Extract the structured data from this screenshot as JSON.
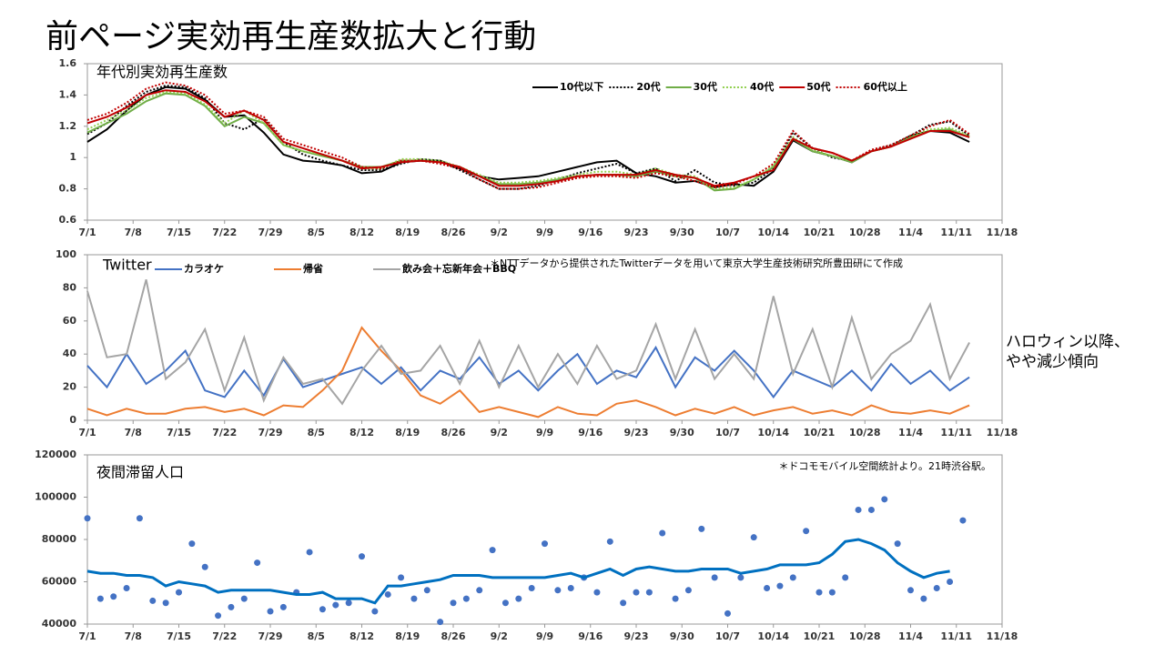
{
  "slide": {
    "title": "前ページ実効再生産数拡大と行動"
  },
  "chart_data": [
    {
      "type": "line",
      "label": "年代別実効再生産数",
      "x": [
        0,
        3,
        6,
        9,
        12,
        15,
        18,
        21,
        24,
        27,
        30,
        33,
        36,
        39,
        42,
        45,
        48,
        51,
        54,
        57,
        60,
        63,
        66,
        69,
        72,
        75,
        78,
        81,
        84,
        87,
        90,
        93,
        96,
        99,
        102,
        105,
        108,
        111,
        114,
        117,
        120,
        123,
        126,
        129,
        132,
        135
      ],
      "xlim": [
        0,
        140
      ],
      "xticks": [
        {
          "value": 0,
          "label": "7/1"
        },
        {
          "value": 7,
          "label": "7/8"
        },
        {
          "value": 14,
          "label": "7/15"
        },
        {
          "value": 21,
          "label": "7/22"
        },
        {
          "value": 28,
          "label": "7/29"
        },
        {
          "value": 35,
          "label": "8/5"
        },
        {
          "value": 42,
          "label": "8/12"
        },
        {
          "value": 49,
          "label": "8/19"
        },
        {
          "value": 56,
          "label": "8/26"
        },
        {
          "value": 63,
          "label": "9/2"
        },
        {
          "value": 70,
          "label": "9/9"
        },
        {
          "value": 77,
          "label": "9/16"
        },
        {
          "value": 84,
          "label": "9/23"
        },
        {
          "value": 91,
          "label": "9/30"
        },
        {
          "value": 98,
          "label": "10/7"
        },
        {
          "value": 105,
          "label": "10/14"
        },
        {
          "value": 112,
          "label": "10/21"
        },
        {
          "value": 119,
          "label": "10/28"
        },
        {
          "value": 126,
          "label": "11/4"
        },
        {
          "value": 133,
          "label": "11/11"
        },
        {
          "value": 140,
          "label": "11/18"
        }
      ],
      "ylim": [
        0.6,
        1.6
      ],
      "yticks": [
        0.6,
        0.8,
        1,
        1.2,
        1.4,
        1.6
      ],
      "legend": "top-right",
      "series": [
        {
          "name": "10代以下",
          "color": "#000000",
          "dash": "solid",
          "values": [
            1.1,
            1.18,
            1.3,
            1.4,
            1.45,
            1.44,
            1.37,
            1.26,
            1.27,
            1.16,
            1.02,
            0.98,
            0.97,
            0.95,
            0.9,
            0.91,
            0.97,
            0.98,
            0.98,
            0.93,
            0.88,
            0.86,
            0.87,
            0.88,
            0.91,
            0.94,
            0.97,
            0.98,
            0.9,
            0.88,
            0.84,
            0.85,
            0.81,
            0.83,
            0.82,
            0.91,
            1.11,
            1.04,
            1.01,
            0.97,
            1.04,
            1.07,
            1.14,
            1.17,
            1.16,
            1.1
          ]
        },
        {
          "name": "20代",
          "color": "#000000",
          "dash": "dotted",
          "values": [
            1.15,
            1.22,
            1.33,
            1.42,
            1.46,
            1.45,
            1.38,
            1.22,
            1.18,
            1.25,
            1.1,
            1.02,
            0.98,
            0.95,
            0.92,
            0.92,
            0.96,
            0.99,
            0.98,
            0.92,
            0.86,
            0.8,
            0.8,
            0.82,
            0.86,
            0.9,
            0.93,
            0.96,
            0.9,
            0.93,
            0.85,
            0.92,
            0.84,
            0.82,
            0.84,
            0.93,
            1.16,
            1.06,
            1.0,
            0.98,
            1.04,
            1.08,
            1.14,
            1.21,
            1.23,
            1.14
          ]
        },
        {
          "name": "30代",
          "color": "#70ad47",
          "dash": "solid",
          "values": [
            1.16,
            1.22,
            1.28,
            1.36,
            1.41,
            1.4,
            1.33,
            1.2,
            1.26,
            1.22,
            1.08,
            1.04,
            1.01,
            0.98,
            0.94,
            0.94,
            0.98,
            0.98,
            0.97,
            0.94,
            0.88,
            0.83,
            0.83,
            0.84,
            0.86,
            0.88,
            0.89,
            0.89,
            0.88,
            0.91,
            0.88,
            0.87,
            0.79,
            0.8,
            0.86,
            0.94,
            1.12,
            1.04,
            1.01,
            0.97,
            1.04,
            1.07,
            1.13,
            1.17,
            1.18,
            1.13
          ]
        },
        {
          "name": "40代",
          "color": "#92d050",
          "dash": "dotted",
          "values": [
            1.18,
            1.24,
            1.3,
            1.38,
            1.42,
            1.41,
            1.34,
            1.22,
            1.3,
            1.22,
            1.08,
            1.04,
            1.02,
            0.98,
            0.93,
            0.93,
            0.99,
            0.99,
            0.98,
            0.94,
            0.89,
            0.84,
            0.84,
            0.85,
            0.87,
            0.89,
            0.91,
            0.91,
            0.89,
            0.93,
            0.89,
            0.88,
            0.8,
            0.81,
            0.86,
            0.95,
            1.13,
            1.05,
            1.01,
            0.98,
            1.04,
            1.07,
            1.14,
            1.18,
            1.19,
            1.14
          ]
        },
        {
          "name": "50代",
          "color": "#c00000",
          "dash": "solid",
          "values": [
            1.22,
            1.26,
            1.32,
            1.4,
            1.43,
            1.42,
            1.36,
            1.26,
            1.3,
            1.24,
            1.1,
            1.06,
            1.02,
            0.98,
            0.93,
            0.94,
            0.97,
            0.98,
            0.97,
            0.94,
            0.88,
            0.82,
            0.82,
            0.83,
            0.85,
            0.88,
            0.89,
            0.89,
            0.89,
            0.92,
            0.89,
            0.87,
            0.82,
            0.84,
            0.88,
            0.92,
            1.12,
            1.06,
            1.03,
            0.98,
            1.04,
            1.07,
            1.12,
            1.17,
            1.17,
            1.13
          ]
        },
        {
          "name": "60代以上",
          "color": "#c00000",
          "dash": "dotted",
          "values": [
            1.24,
            1.28,
            1.35,
            1.44,
            1.48,
            1.46,
            1.4,
            1.28,
            1.3,
            1.26,
            1.12,
            1.08,
            1.04,
            1.0,
            0.94,
            0.93,
            0.98,
            0.98,
            0.96,
            0.93,
            0.86,
            0.8,
            0.8,
            0.81,
            0.84,
            0.87,
            0.88,
            0.88,
            0.87,
            0.9,
            0.88,
            0.85,
            0.81,
            0.83,
            0.88,
            0.96,
            1.17,
            1.06,
            1.03,
            0.98,
            1.05,
            1.08,
            1.14,
            1.2,
            1.24,
            1.15
          ]
        }
      ]
    },
    {
      "type": "line",
      "label": "Twitter",
      "note": "＊NTTデータから提供されたTwitterデータを用いて東京大学生産技術研究所豊田研にて作成",
      "annotation_lines": [
        "ハロウィン以降、",
        "やや減少傾向"
      ],
      "x": [
        0,
        3,
        6,
        9,
        12,
        15,
        18,
        21,
        24,
        27,
        30,
        33,
        36,
        39,
        42,
        45,
        48,
        51,
        54,
        57,
        60,
        63,
        66,
        69,
        72,
        75,
        78,
        81,
        84,
        87,
        90,
        93,
        96,
        99,
        102,
        105,
        108,
        111,
        114,
        117,
        120,
        123,
        126,
        129,
        132,
        135
      ],
      "xlim": [
        0,
        140
      ],
      "xticks": [
        {
          "value": 0,
          "label": "7/1"
        },
        {
          "value": 7,
          "label": "7/8"
        },
        {
          "value": 14,
          "label": "7/15"
        },
        {
          "value": 21,
          "label": "7/22"
        },
        {
          "value": 28,
          "label": "7/29"
        },
        {
          "value": 35,
          "label": "8/5"
        },
        {
          "value": 42,
          "label": "8/12"
        },
        {
          "value": 49,
          "label": "8/19"
        },
        {
          "value": 56,
          "label": "8/26"
        },
        {
          "value": 63,
          "label": "9/2"
        },
        {
          "value": 70,
          "label": "9/9"
        },
        {
          "value": 77,
          "label": "9/16"
        },
        {
          "value": 84,
          "label": "9/23"
        },
        {
          "value": 91,
          "label": "9/30"
        },
        {
          "value": 98,
          "label": "10/7"
        },
        {
          "value": 105,
          "label": "10/14"
        },
        {
          "value": 112,
          "label": "10/21"
        },
        {
          "value": 119,
          "label": "10/28"
        },
        {
          "value": 126,
          "label": "11/4"
        },
        {
          "value": 133,
          "label": "11/11"
        },
        {
          "value": 140,
          "label": "11/18"
        }
      ],
      "ylim": [
        0,
        100
      ],
      "yticks": [
        0,
        20,
        40,
        60,
        80,
        100
      ],
      "legend": "top-left",
      "series": [
        {
          "name": "カラオケ",
          "color": "#4472c4",
          "dash": "solid",
          "values": [
            33,
            20,
            40,
            22,
            30,
            42,
            18,
            14,
            30,
            15,
            37,
            20,
            24,
            28,
            32,
            22,
            32,
            18,
            30,
            25,
            38,
            22,
            30,
            18,
            30,
            40,
            22,
            30,
            26,
            44,
            20,
            38,
            30,
            42,
            30,
            14,
            30,
            25,
            20,
            30,
            18,
            34,
            22,
            30,
            18,
            26
          ]
        },
        {
          "name": "帰省",
          "color": "#ed7d31",
          "dash": "solid",
          "values": [
            7,
            3,
            7,
            4,
            4,
            7,
            8,
            5,
            7,
            3,
            9,
            8,
            18,
            30,
            56,
            42,
            30,
            15,
            10,
            18,
            5,
            8,
            5,
            2,
            8,
            4,
            3,
            10,
            12,
            8,
            3,
            7,
            4,
            8,
            3,
            6,
            8,
            4,
            6,
            3,
            9,
            5,
            4,
            6,
            4,
            9
          ]
        },
        {
          "name": "飲み会＋忘新年会＋BBQ",
          "color": "#a5a5a5",
          "dash": "solid",
          "values": [
            78,
            38,
            40,
            85,
            25,
            35,
            55,
            18,
            50,
            12,
            38,
            22,
            25,
            10,
            30,
            45,
            28,
            30,
            45,
            22,
            48,
            20,
            45,
            20,
            40,
            22,
            45,
            25,
            30,
            58,
            25,
            55,
            25,
            40,
            25,
            75,
            28,
            55,
            20,
            62,
            25,
            40,
            48,
            70,
            25,
            47
          ]
        }
      ]
    },
    {
      "type": "scatter",
      "label": "夜間滞留人口",
      "note": "＊ドコモモバイル空間統計より。21時渋谷駅。",
      "x": [
        0,
        2,
        4,
        6,
        8,
        10,
        12,
        14,
        16,
        18,
        20,
        22,
        24,
        26,
        28,
        30,
        32,
        34,
        36,
        38,
        40,
        42,
        44,
        46,
        48,
        50,
        52,
        54,
        56,
        58,
        60,
        62,
        64,
        66,
        68,
        70,
        72,
        74,
        76,
        78,
        80,
        82,
        84,
        86,
        88,
        90,
        92,
        94,
        96,
        98,
        100,
        102,
        104,
        106,
        108,
        110,
        112,
        114,
        116,
        118,
        120,
        122,
        124,
        126,
        128,
        130,
        132,
        134
      ],
      "xlim": [
        0,
        140
      ],
      "xticks": [
        {
          "value": 0,
          "label": "7/1"
        },
        {
          "value": 7,
          "label": "7/8"
        },
        {
          "value": 14,
          "label": "7/15"
        },
        {
          "value": 21,
          "label": "7/22"
        },
        {
          "value": 28,
          "label": "7/29"
        },
        {
          "value": 35,
          "label": "8/5"
        },
        {
          "value": 42,
          "label": "8/12"
        },
        {
          "value": 49,
          "label": "8/19"
        },
        {
          "value": 56,
          "label": "8/26"
        },
        {
          "value": 63,
          "label": "9/2"
        },
        {
          "value": 70,
          "label": "9/9"
        },
        {
          "value": 77,
          "label": "9/16"
        },
        {
          "value": 84,
          "label": "9/23"
        },
        {
          "value": 91,
          "label": "9/30"
        },
        {
          "value": 98,
          "label": "10/7"
        },
        {
          "value": 105,
          "label": "10/14"
        },
        {
          "value": 112,
          "label": "10/21"
        },
        {
          "value": 119,
          "label": "10/28"
        },
        {
          "value": 126,
          "label": "11/4"
        },
        {
          "value": 133,
          "label": "11/11"
        },
        {
          "value": 140,
          "label": "11/18"
        }
      ],
      "ylim": [
        40000,
        120000
      ],
      "yticks": [
        40000,
        60000,
        80000,
        100000,
        120000
      ],
      "series": [
        {
          "type": "scatter",
          "color": "#4472c4",
          "values": [
            90000,
            52000,
            53000,
            57000,
            90000,
            51000,
            50000,
            55000,
            78000,
            67000,
            44000,
            48000,
            52000,
            69000,
            46000,
            48000,
            55000,
            74000,
            47000,
            49000,
            50000,
            72000,
            46000,
            54000,
            62000,
            52000,
            56000,
            41000,
            50000,
            52000,
            56000,
            75000,
            50000,
            52000,
            57000,
            78000,
            56000,
            57000,
            62000,
            55000,
            79000,
            50000,
            55000,
            55000,
            83000,
            52000,
            56000,
            85000,
            62000,
            45000,
            62000,
            81000,
            57000,
            58000,
            62000,
            84000,
            55000,
            55000,
            62000,
            94000,
            94000,
            99000,
            78000,
            56000,
            52000,
            57000,
            60000,
            89000
          ]
        },
        {
          "type": "line",
          "color": "#0070c0",
          "values": [
            65000,
            64000,
            64000,
            63000,
            63000,
            62000,
            58000,
            60000,
            59000,
            58000,
            55000,
            56000,
            56000,
            56000,
            56000,
            55000,
            54000,
            54000,
            55000,
            52000,
            52000,
            52000,
            50000,
            58000,
            58000,
            59000,
            60000,
            61000,
            63000,
            63000,
            63000,
            62000,
            62000,
            62000,
            62000,
            62000,
            63000,
            64000,
            62000,
            64000,
            66000,
            63000,
            66000,
            67000,
            66000,
            65000,
            65000,
            66000,
            66000,
            66000,
            64000,
            65000,
            66000,
            68000,
            68000,
            68000,
            69000,
            73000,
            79000,
            80000,
            78000,
            75000,
            69000,
            65000,
            62000,
            64000,
            65000,
            null
          ]
        }
      ]
    }
  ]
}
